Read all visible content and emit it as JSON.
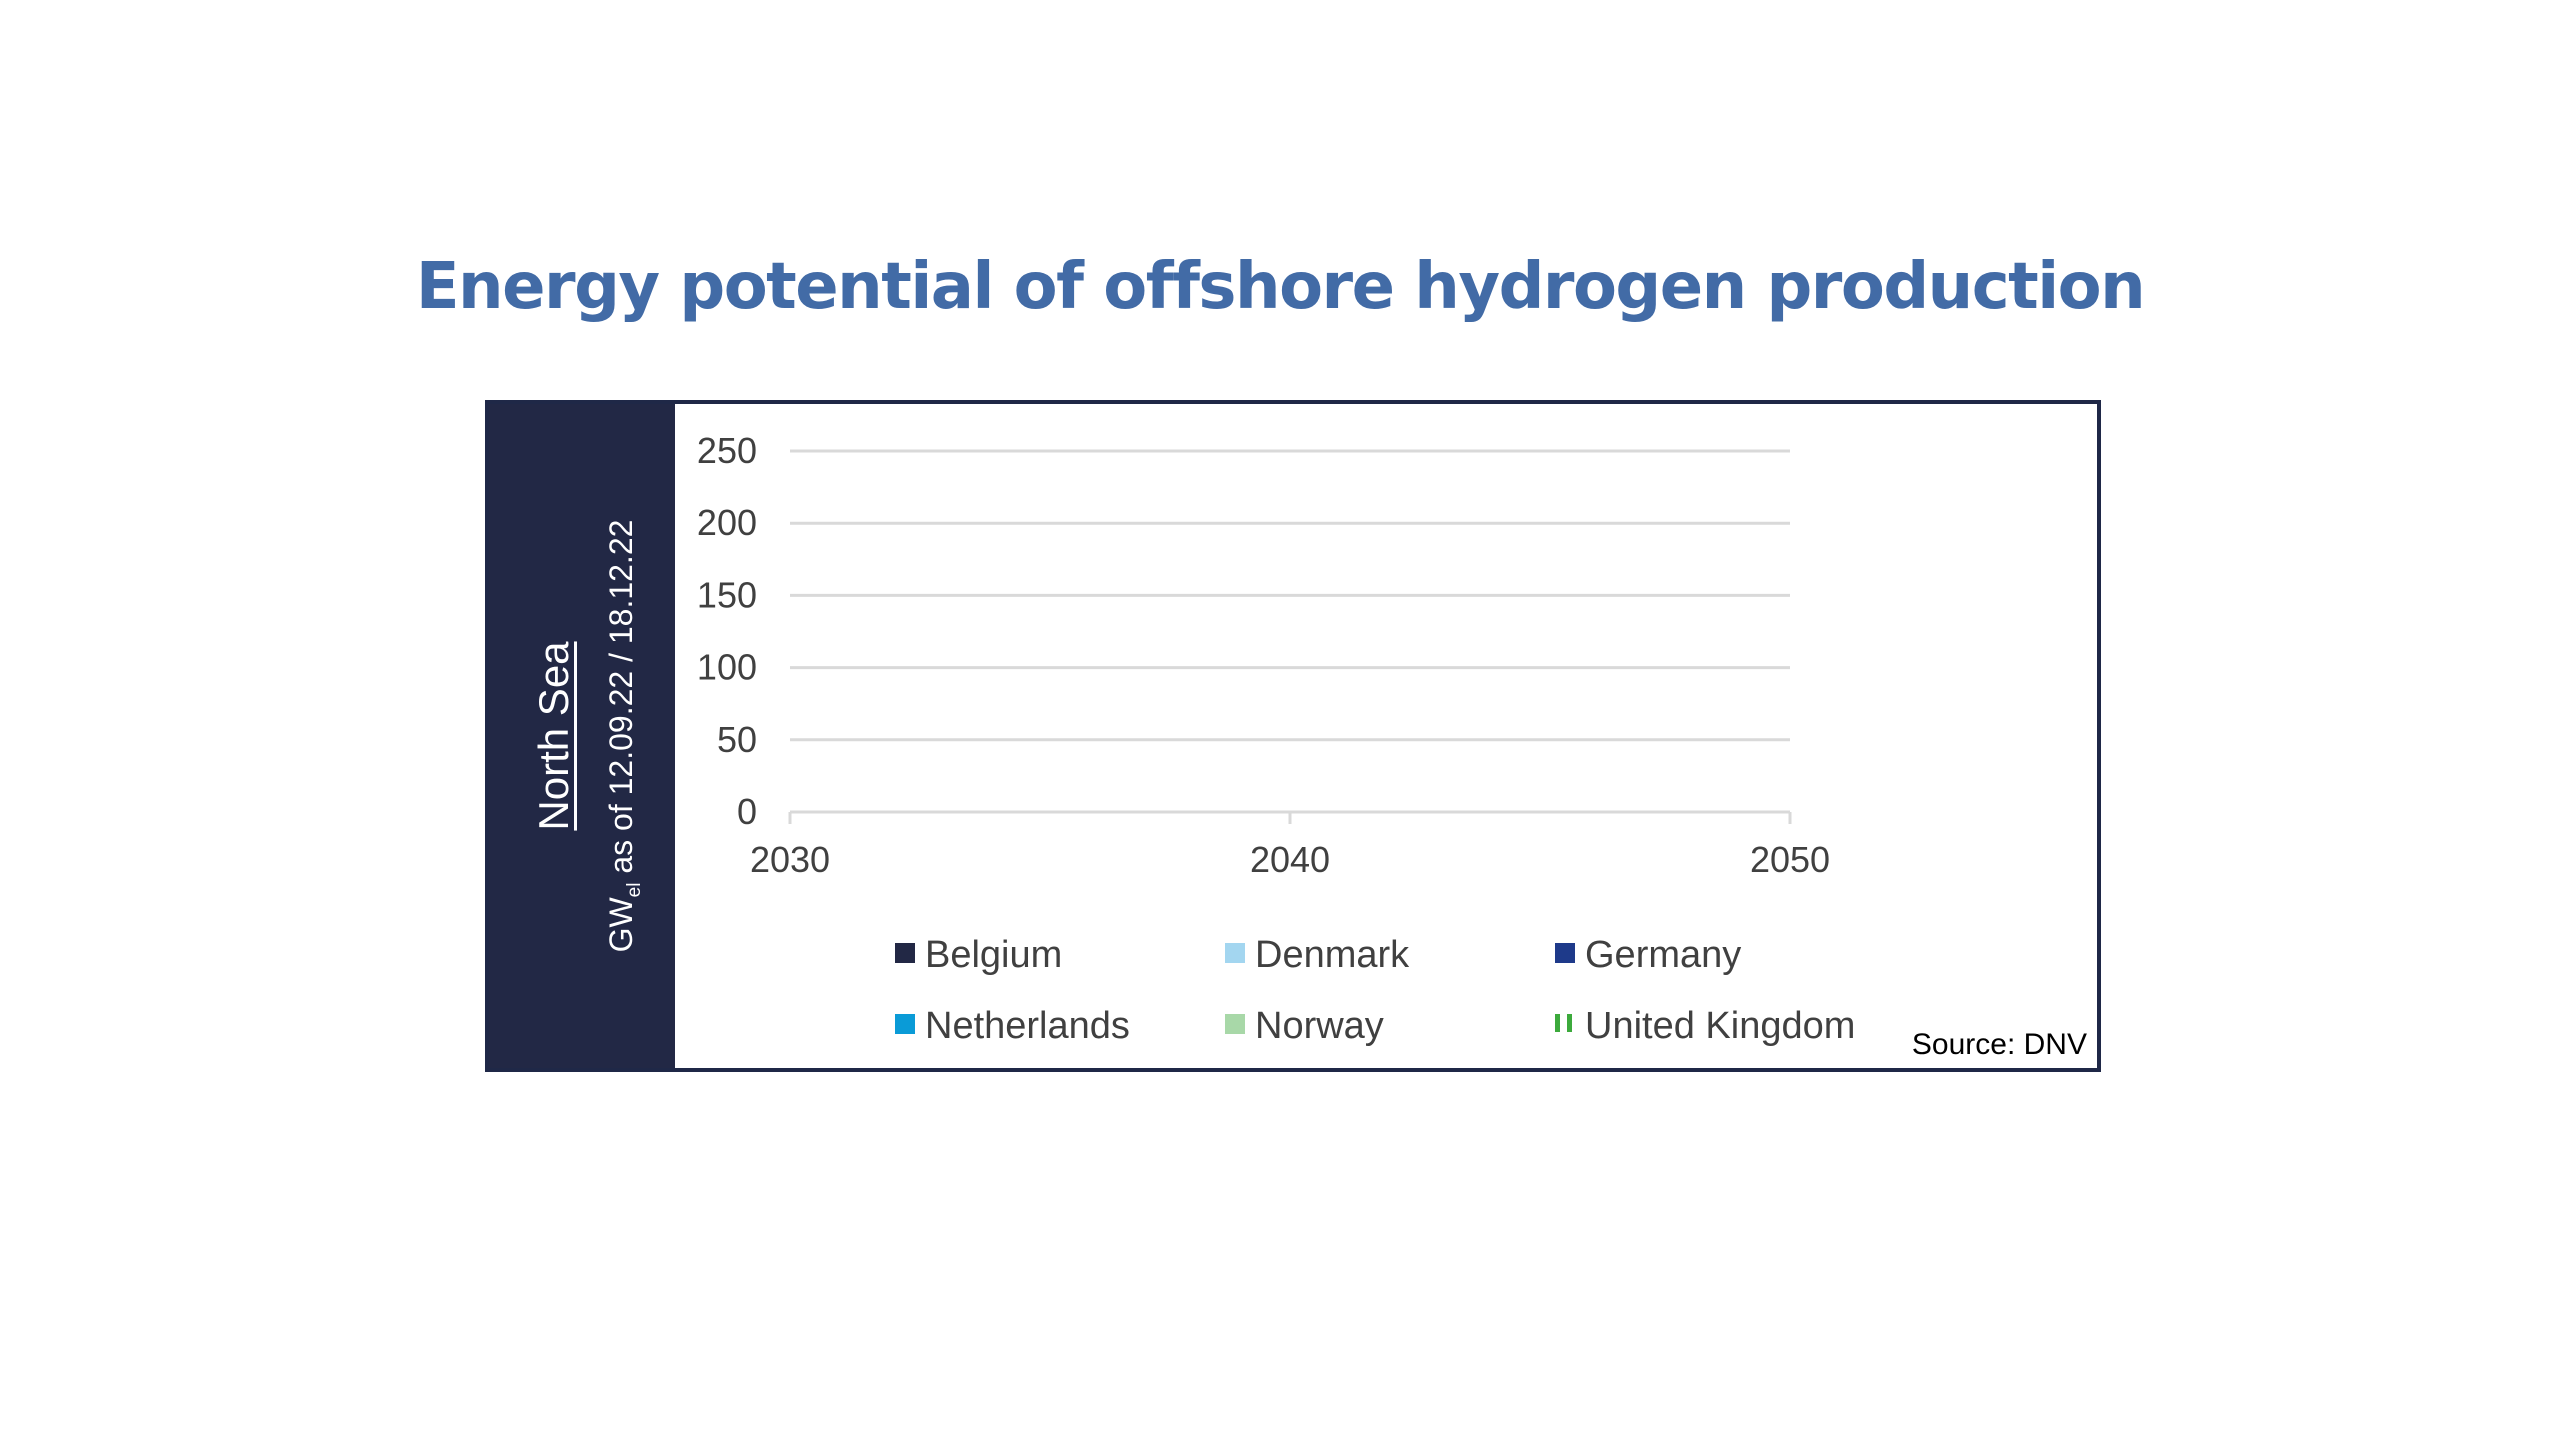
{
  "title": "Energy potential of offshore hydrogen production",
  "side_panel": {
    "region": "North Sea",
    "unit_main": "GW",
    "unit_sub": "el",
    "unit_rest": " as of 12.09.22 / 18.12.22"
  },
  "source": "Source: DNV",
  "colors": {
    "title": "#426BA6",
    "panel": "#222845",
    "frame": "#1F2847",
    "grid": "#D9D9D9",
    "axis": "#D9D9D9"
  },
  "chart_data": {
    "type": "area",
    "title": "",
    "xlabel": "",
    "ylabel": "GWel as of 12.09.22 / 18.12.22",
    "x": [
      2030,
      2040,
      2050
    ],
    "x_tick_labels": [
      "2030",
      "2040",
      "2050"
    ],
    "ylim": [
      0,
      250
    ],
    "y_ticks": [
      0,
      50,
      100,
      150,
      200,
      250
    ],
    "y_tick_labels": [
      "0",
      "50",
      "100",
      "150",
      "200",
      "250"
    ],
    "grid": true,
    "legend_position": "bottom",
    "series": [
      {
        "name": "Belgium",
        "color": "#222845",
        "marker": "square",
        "values": [
          null,
          null,
          null
        ]
      },
      {
        "name": "Denmark",
        "color": "#A3D6F0",
        "marker": "square",
        "values": [
          null,
          null,
          null
        ]
      },
      {
        "name": "Germany",
        "color": "#1E3A8A",
        "marker": "square",
        "values": [
          null,
          null,
          null
        ]
      },
      {
        "name": "Netherlands",
        "color": "#0A9BD7",
        "marker": "square",
        "values": [
          null,
          null,
          null
        ]
      },
      {
        "name": "Norway",
        "color": "#A8D8A8",
        "marker": "square",
        "values": [
          null,
          null,
          null
        ]
      },
      {
        "name": "United Kingdom",
        "color": "#3CAA3C",
        "marker": "dashed",
        "values": [
          null,
          null,
          null
        ]
      }
    ]
  }
}
